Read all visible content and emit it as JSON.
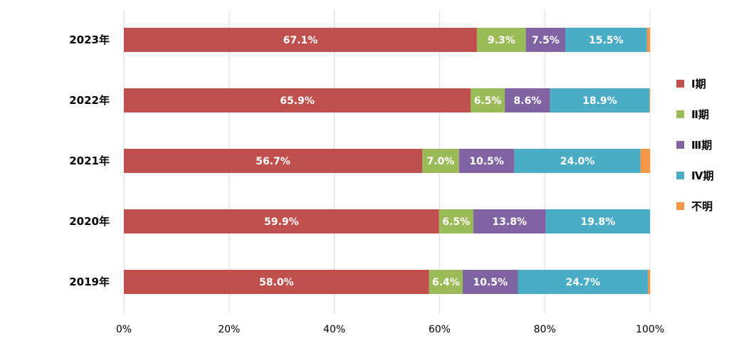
{
  "chart_data": {
    "type": "bar",
    "orientation": "horizontal",
    "stacked": true,
    "title": "",
    "xlabel": "",
    "ylabel": "",
    "xlim": [
      0,
      100
    ],
    "x_ticks": [
      "0%",
      "20%",
      "40%",
      "60%",
      "80%",
      "100%"
    ],
    "grid": true,
    "legend_position": "right",
    "categories": [
      "2023年",
      "2022年",
      "2021年",
      "2020年",
      "2019年"
    ],
    "series": [
      {
        "name": "Ⅰ期",
        "color": "#c0504d",
        "values": [
          67.1,
          65.9,
          56.7,
          59.9,
          58.0
        ],
        "labels": [
          "67.1%",
          "65.9%",
          "56.7%",
          "59.9%",
          "58.0%"
        ]
      },
      {
        "name": "Ⅱ期",
        "color": "#9bbb59",
        "values": [
          9.3,
          6.5,
          7.0,
          6.5,
          6.4
        ],
        "labels": [
          "9.3%",
          "6.5%",
          "7.0%",
          "6.5%",
          "6.4%"
        ]
      },
      {
        "name": "Ⅲ期",
        "color": "#8064a2",
        "values": [
          7.5,
          8.6,
          10.5,
          13.8,
          10.5
        ],
        "labels": [
          "7.5%",
          "8.6%",
          "10.5%",
          "13.8%",
          "10.5%"
        ]
      },
      {
        "name": "Ⅳ期",
        "color": "#4bacc6",
        "values": [
          15.5,
          18.9,
          24.0,
          19.8,
          24.7
        ],
        "labels": [
          "15.5%",
          "18.9%",
          "24.0%",
          "19.8%",
          "24.7%"
        ]
      },
      {
        "name": "不明",
        "color": "#f79646",
        "values": [
          0.6,
          0.1,
          1.8,
          0.0,
          0.4
        ],
        "labels": [
          "",
          "",
          "",
          "",
          ""
        ]
      }
    ]
  }
}
